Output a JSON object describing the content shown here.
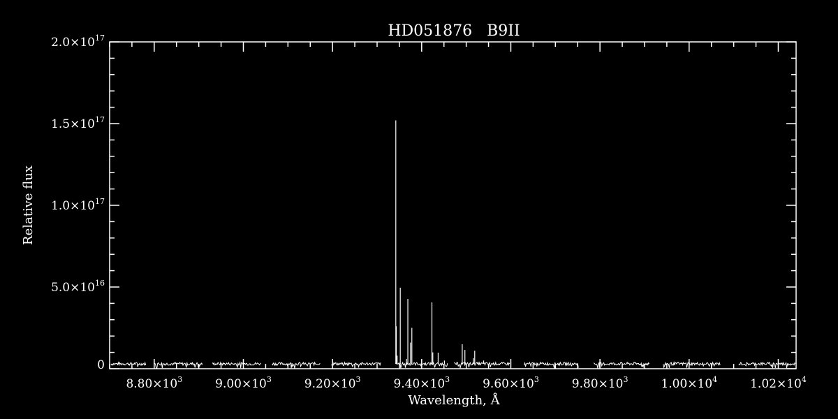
{
  "chart_data": {
    "type": "line",
    "title": "HD051876   B9II",
    "xlabel": "Wavelength, Å",
    "ylabel": "Relative flux",
    "xlim": [
      8700,
      10240
    ],
    "ylim": [
      0,
      2e+17
    ],
    "grid": false,
    "x_ticks": [
      {
        "value": 8800,
        "label": "8.80×10",
        "exp": "3"
      },
      {
        "value": 9000,
        "label": "9.00×10",
        "exp": "3"
      },
      {
        "value": 9200,
        "label": "9.20×10",
        "exp": "3"
      },
      {
        "value": 9400,
        "label": "9.40×10",
        "exp": "3"
      },
      {
        "value": 9600,
        "label": "9.60×10",
        "exp": "3"
      },
      {
        "value": 9800,
        "label": "9.80×10",
        "exp": "3"
      },
      {
        "value": 10000,
        "label": "1.00×10",
        "exp": "4"
      },
      {
        "value": 10200,
        "label": "1.02×10",
        "exp": "4"
      }
    ],
    "y_ticks": [
      {
        "value": 0,
        "label": "0",
        "exp": ""
      },
      {
        "value": 5e+16,
        "label": "5.0×10",
        "exp": "16"
      },
      {
        "value": 1e+17,
        "label": "1.0×10",
        "exp": "17"
      },
      {
        "value": 1.5e+17,
        "label": "1.5×10",
        "exp": "17"
      },
      {
        "value": 2e+17,
        "label": "2.0×10",
        "exp": "17"
      }
    ],
    "continuum_level": 3000000000000000.0,
    "segments": [
      [
        8703,
        8781
      ],
      [
        8800,
        8909
      ],
      [
        8931,
        9039
      ],
      [
        9064,
        9173
      ],
      [
        9197,
        9309
      ],
      [
        9341,
        9458
      ],
      [
        9473,
        9598
      ],
      [
        9630,
        9752
      ],
      [
        9786,
        9911
      ],
      [
        9942,
        10070
      ],
      [
        10111,
        10239
      ]
    ],
    "emission_lines": [
      {
        "x": 9342,
        "y": 1.52e+17
      },
      {
        "x": 9343,
        "y": 2.6e+16
      },
      {
        "x": 9345,
        "y": 8000000000000000.0
      },
      {
        "x": 9352,
        "y": 4.96e+16
      },
      {
        "x": 9369,
        "y": 4.27e+16
      },
      {
        "x": 9375,
        "y": 1.6e+16
      },
      {
        "x": 9378,
        "y": 2.5e+16
      },
      {
        "x": 9366,
        "y": 6000000000000000.0
      },
      {
        "x": 9423,
        "y": 4.06e+16
      },
      {
        "x": 9425,
        "y": 1e+16
      },
      {
        "x": 9437,
        "y": 9800000000000000.0
      },
      {
        "x": 9451,
        "y": 5000000000000000.0
      },
      {
        "x": 9491,
        "y": 1.5e+16
      },
      {
        "x": 9497,
        "y": 1.15e+16
      },
      {
        "x": 9516,
        "y": 6400000000000000.0
      },
      {
        "x": 9519,
        "y": 1.1e+16
      },
      {
        "x": 9539,
        "y": 5000000000000000.0
      }
    ]
  }
}
